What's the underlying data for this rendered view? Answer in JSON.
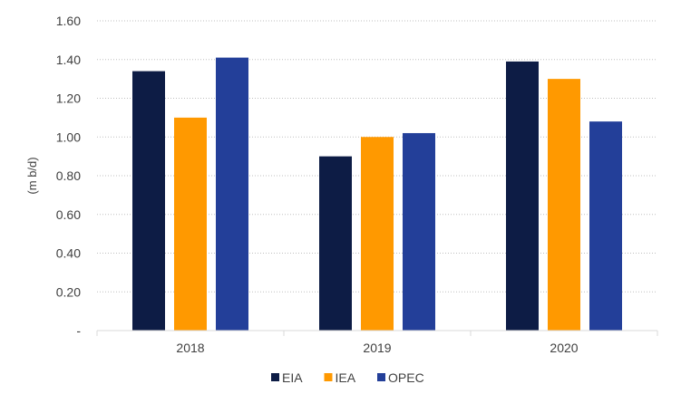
{
  "chart_data": {
    "type": "bar",
    "categories": [
      "2018",
      "2019",
      "2020"
    ],
    "series": [
      {
        "name": "EIA",
        "values": [
          1.34,
          0.9,
          1.39
        ],
        "color": "#0d1c45"
      },
      {
        "name": "IEA",
        "values": [
          1.1,
          1.0,
          1.3
        ],
        "color": "#ff9900"
      },
      {
        "name": "OPEC",
        "values": [
          1.41,
          1.02,
          1.08
        ],
        "color": "#233f99"
      }
    ],
    "ylabel": "(m b/d)",
    "ylim": [
      0,
      1.6
    ],
    "yticks": [
      "-",
      "0.20",
      "0.40",
      "0.60",
      "0.80",
      "1.00",
      "1.20",
      "1.40",
      "1.60"
    ],
    "grid": true,
    "legend_position": "bottom"
  }
}
